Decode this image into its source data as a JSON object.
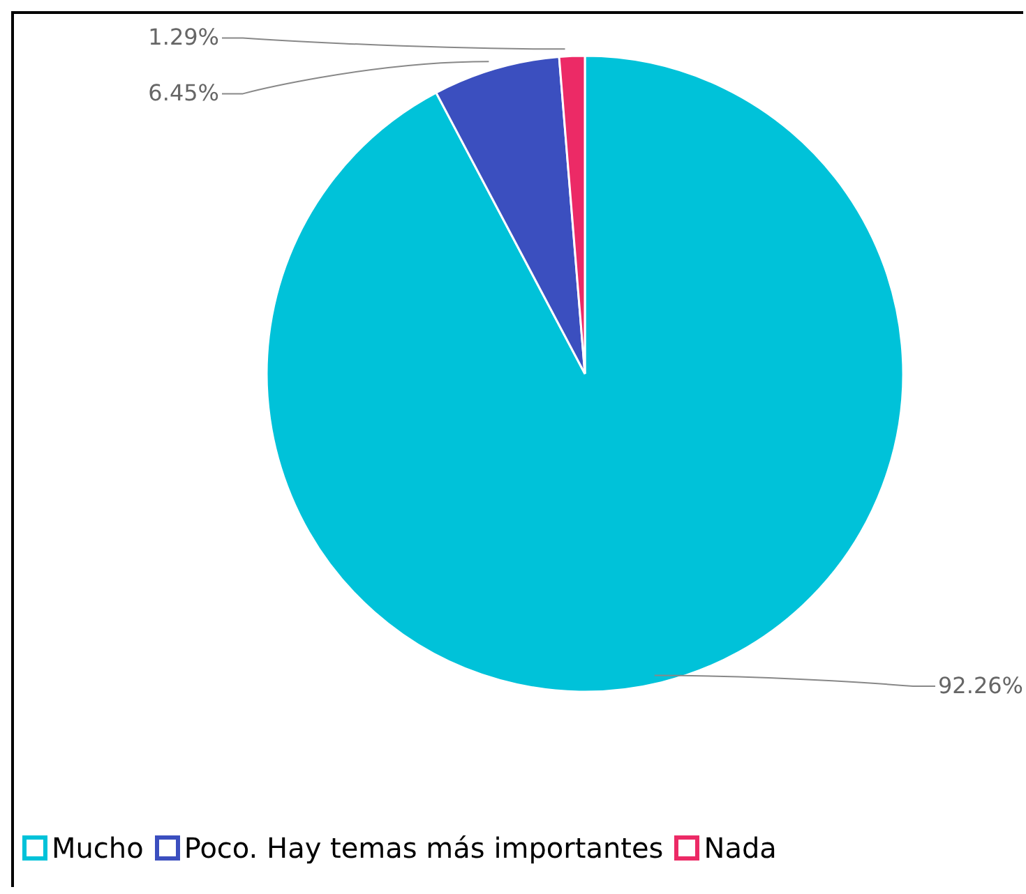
{
  "chart_data": {
    "type": "pie",
    "categories": [
      "Mucho",
      "Poco. Hay temas más importantes",
      "Nada"
    ],
    "values": [
      92.26,
      6.45,
      1.29
    ],
    "colors": [
      "#00c2d9",
      "#3b4fbf",
      "#ec2a66"
    ],
    "value_labels": [
      "92.26%",
      "6.45%",
      "1.29%"
    ],
    "legend": "bottom"
  }
}
